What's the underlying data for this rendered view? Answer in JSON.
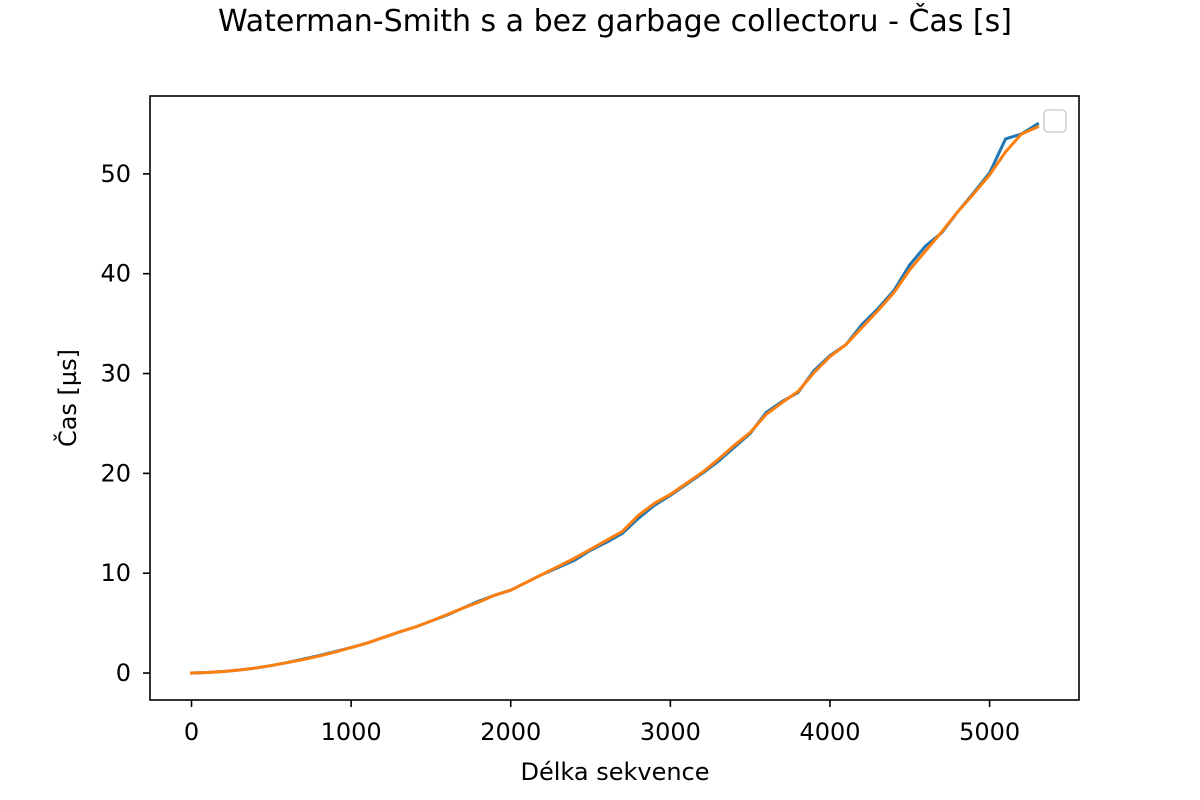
{
  "chart_data": {
    "type": "line",
    "title": "Waterman-Smith s a bez garbage collectoru - Čas [s]",
    "xlabel": "Délka sekvence",
    "ylabel": "Čas [µs]",
    "xlim": [
      -260,
      5560
    ],
    "ylim": [
      -2.7,
      57.8
    ],
    "xticks": [
      0,
      1000,
      2000,
      3000,
      4000,
      5000
    ],
    "yticks": [
      0,
      10,
      20,
      30,
      40,
      50
    ],
    "grid": false,
    "legend": {
      "placement": "upper right",
      "entries": []
    },
    "x": [
      0,
      100,
      200,
      300,
      400,
      500,
      600,
      700,
      800,
      900,
      1000,
      1100,
      1200,
      1300,
      1400,
      1500,
      1600,
      1700,
      1800,
      1900,
      2000,
      2100,
      2200,
      2300,
      2400,
      2500,
      2600,
      2700,
      2800,
      2900,
      3000,
      3100,
      3200,
      3300,
      3400,
      3500,
      3600,
      3700,
      3800,
      3900,
      4000,
      4100,
      4200,
      4300,
      4400,
      4500,
      4600,
      4700,
      4800,
      4900,
      5000,
      5100,
      5200,
      5300
    ],
    "series": [
      {
        "color": "#1f77b4",
        "values": [
          0.0,
          0.05,
          0.15,
          0.3,
          0.5,
          0.75,
          1.05,
          1.4,
          1.75,
          2.15,
          2.55,
          3.0,
          3.55,
          4.1,
          4.6,
          5.2,
          5.8,
          6.5,
          7.2,
          7.8,
          8.3,
          9.1,
          9.9,
          10.6,
          11.3,
          12.3,
          13.1,
          14.0,
          15.5,
          16.8,
          17.8,
          18.9,
          20.0,
          21.2,
          22.6,
          24.0,
          26.1,
          27.2,
          28.1,
          30.3,
          31.8,
          32.9,
          34.9,
          36.5,
          38.3,
          40.9,
          42.8,
          44.1,
          46.2,
          48.1,
          50.1,
          53.5,
          54.0,
          55.0
        ]
      },
      {
        "color": "#ff7f0e",
        "values": [
          0.0,
          0.05,
          0.15,
          0.3,
          0.5,
          0.75,
          1.05,
          1.35,
          1.7,
          2.1,
          2.55,
          3.0,
          3.55,
          4.1,
          4.6,
          5.2,
          5.85,
          6.5,
          7.1,
          7.8,
          8.3,
          9.1,
          9.9,
          10.7,
          11.5,
          12.4,
          13.3,
          14.2,
          15.8,
          17.0,
          17.9,
          19.0,
          20.1,
          21.4,
          22.8,
          24.1,
          25.9,
          27.1,
          28.2,
          30.1,
          31.7,
          32.9,
          34.6,
          36.3,
          38.1,
          40.4,
          42.3,
          44.2,
          46.2,
          48.0,
          49.9,
          52.2,
          54.0,
          54.7
        ]
      }
    ]
  }
}
